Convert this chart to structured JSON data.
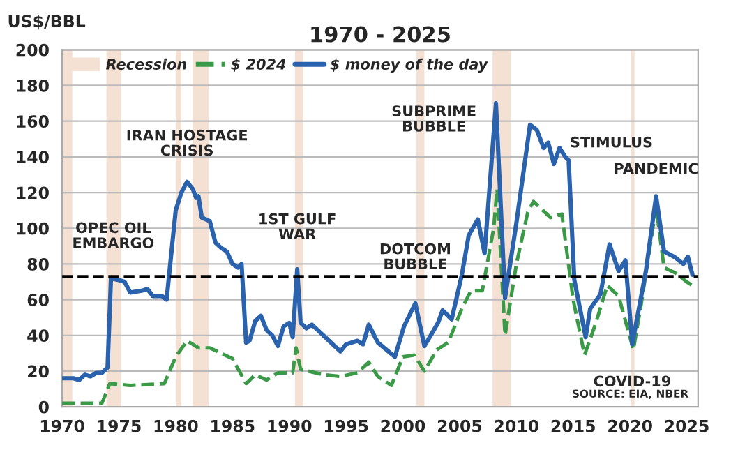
{
  "chart_data": {
    "type": "line",
    "title": "1970 - 2025",
    "ylabel": "US$/BBL",
    "xlim": [
      1970,
      2026
    ],
    "xticks": [
      1970,
      1975,
      1980,
      1985,
      1990,
      1995,
      2000,
      2005,
      2010,
      2015,
      2020,
      2025
    ],
    "ylim": [
      0,
      200
    ],
    "yticks": [
      0,
      20,
      40,
      60,
      80,
      100,
      120,
      140,
      160,
      180,
      200
    ],
    "grid": "y",
    "legend": "top left",
    "series": [
      {
        "name": "$ 2024",
        "color": "#3a9a47",
        "line_style": "dashed",
        "x": [
          1970,
          1973.5,
          1974.2,
          1976,
          1979,
          1980,
          1981,
          1982,
          1983,
          1985,
          1986.2,
          1987,
          1988,
          1989,
          1990.3,
          1990.6,
          1991,
          1993,
          1994.5,
          1996,
          1997,
          1997.8,
          1999,
          2000,
          2001,
          2001.9,
          2003,
          2004,
          2005.2,
          2006,
          2007,
          2008,
          2008.3,
          2009,
          2010,
          2011,
          2011.5,
          2012,
          2013,
          2014,
          2015,
          2016,
          2017,
          2018,
          2019,
          2020.3,
          2021,
          2022.3,
          2023,
          2024,
          2025,
          2025.5
        ],
        "values": [
          2,
          2,
          13,
          12,
          13,
          28,
          37,
          33,
          33,
          27,
          13,
          18,
          15,
          19,
          19,
          33,
          21,
          18,
          17,
          19,
          25,
          17,
          12,
          28,
          29,
          20,
          32,
          36,
          55,
          65,
          65,
          100,
          122,
          40,
          80,
          109,
          115,
          112,
          106,
          108,
          60,
          29,
          47,
          68,
          62,
          32,
          58,
          112,
          78,
          75,
          70,
          68
        ]
      },
      {
        "name": "$ money of the day",
        "color": "#2a62ad",
        "line_style": "solid",
        "x": [
          1970,
          1971,
          1971.5,
          1972,
          1972.5,
          1973,
          1973.5,
          1974,
          1974.3,
          1975,
          1975.5,
          1976,
          1977,
          1977.5,
          1978,
          1978.8,
          1979.2,
          1979.6,
          1980,
          1980.5,
          1981,
          1981.5,
          1981.8,
          1982,
          1982.3,
          1983,
          1983.5,
          1984,
          1984.5,
          1985,
          1985.5,
          1985.8,
          1986.2,
          1986.5,
          1987,
          1987.5,
          1988,
          1988.5,
          1989,
          1989.5,
          1990,
          1990.3,
          1990.7,
          1991,
          1991.5,
          1992,
          1992.5,
          1993,
          1993.5,
          1994,
          1994.5,
          1995,
          1996,
          1996.5,
          1997,
          1997.8,
          1999.3,
          2000.1,
          2001.1,
          2001.9,
          2003.1,
          2003.5,
          2004.3,
          2005.2,
          2005.8,
          2006.6,
          2007.2,
          2008.2,
          2009,
          2010,
          2011.2,
          2011.8,
          2012.4,
          2012.8,
          2013.3,
          2013.8,
          2014.3,
          2014.6,
          2015.1,
          2016.1,
          2016.5,
          2017.4,
          2018.2,
          2019,
          2019.6,
          2020.2,
          2021.4,
          2022.3,
          2023,
          2023.9,
          2024.7,
          2025.1,
          2025.5
        ],
        "values": [
          16,
          16,
          15,
          18,
          17,
          19,
          19,
          22,
          72,
          71,
          70,
          64,
          65,
          66,
          62,
          62,
          60,
          85,
          110,
          120,
          126,
          122,
          117,
          118,
          106,
          104,
          92,
          89,
          87,
          80,
          78,
          80,
          36,
          37,
          48,
          51,
          43,
          40,
          34,
          45,
          47,
          39,
          77,
          47,
          44,
          46,
          43,
          40,
          37,
          34,
          31,
          35,
          37,
          35,
          46,
          36,
          28,
          45,
          58,
          34,
          47,
          54,
          49,
          74,
          96,
          105,
          86,
          170,
          61,
          103,
          158,
          155,
          145,
          148,
          136,
          145,
          140,
          138,
          71,
          39,
          55,
          63,
          91,
          76,
          82,
          35,
          76,
          118,
          87,
          84,
          80,
          84,
          74
        ]
      }
    ],
    "bands": [
      {
        "axis": "x",
        "from": 1969.9,
        "to": 1970.9,
        "color": "#f5e1d3",
        "label": "Recession"
      },
      {
        "axis": "x",
        "from": 1973.9,
        "to": 1975.2,
        "color": "#f5e1d3"
      },
      {
        "axis": "x",
        "from": 1980,
        "to": 1980.5,
        "color": "#f5e1d3"
      },
      {
        "axis": "x",
        "from": 1981.5,
        "to": 1982.9,
        "color": "#f5e1d3"
      },
      {
        "axis": "x",
        "from": 1990.5,
        "to": 1991.2,
        "color": "#f5e1d3"
      },
      {
        "axis": "x",
        "from": 2001.2,
        "to": 2001.9,
        "color": "#f5e1d3"
      },
      {
        "axis": "x",
        "from": 2007.9,
        "to": 2009.5,
        "color": "#f5e1d3"
      },
      {
        "axis": "x",
        "from": 2020.1,
        "to": 2020.4,
        "color": "#f5e1d3"
      }
    ],
    "ref_lines": [
      {
        "axis": "y",
        "value": 73,
        "color": "#000000",
        "line_style": "dashed"
      }
    ],
    "annotations": [
      {
        "text": "OPEC OIL\nEMBARGO",
        "x": 1974.5,
        "y": 72
      },
      {
        "text": "IRAN HOSTAGE\nCRISIS",
        "x": 1981,
        "y": 126
      },
      {
        "text": "1ST GULF\nWAR",
        "x": 1990.7,
        "y": 77
      },
      {
        "text": "DOTCOM\nBUBBLE",
        "x": 2001.1,
        "y": 58
      },
      {
        "text": "SUBPRIME\nBUBBLE",
        "x": 2008.2,
        "y": 170
      },
      {
        "text": "STIMULUS",
        "x": 2011.2,
        "y": 158
      },
      {
        "text": "PANDEMIC",
        "x": 2022.3,
        "y": 118
      },
      {
        "text": "COVID-19",
        "x": 2020.2,
        "y": 35
      },
      "SOURCE: EIA, NBER"
    ]
  }
}
